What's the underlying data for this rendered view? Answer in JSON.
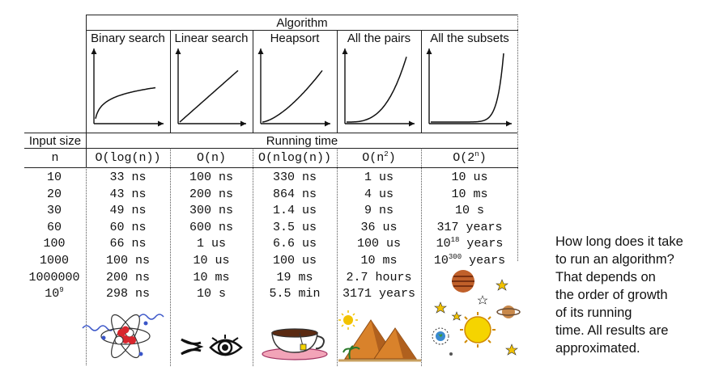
{
  "header": {
    "algorithm_label": "Algorithm",
    "running_time_label": "Running time",
    "input_size_label": "Input size",
    "n_label": "n"
  },
  "algorithms": [
    {
      "name": "Binary search",
      "complexity": "O(log(n))"
    },
    {
      "name": "Linear search",
      "complexity": "O(n)"
    },
    {
      "name": "Heapsort",
      "complexity": "O(nlog(n))"
    },
    {
      "name": "All the pairs",
      "complexity_base": "O(n",
      "complexity_exp": "2",
      "complexity_end": ")"
    },
    {
      "name": "All the subsets",
      "complexity_base": "O(2",
      "complexity_exp": "n",
      "complexity_end": ")"
    }
  ],
  "input_sizes": [
    {
      "value": "10"
    },
    {
      "value": "20"
    },
    {
      "value": "30"
    },
    {
      "value": "60"
    },
    {
      "value": "100"
    },
    {
      "value": "1000"
    },
    {
      "value": "1000000"
    },
    {
      "base": "10",
      "exp": "9"
    }
  ],
  "rows": [
    [
      "33 ns",
      "100 ns",
      "330 ns",
      "1 us",
      "10 us"
    ],
    [
      "43 ns",
      "200 ns",
      "864 ns",
      "4 us",
      "10 ms"
    ],
    [
      "49 ns",
      "300 ns",
      "1.4 us",
      "9 ns",
      "10 s"
    ],
    [
      "60 ns",
      "600 ns",
      "3.5 us",
      "36 us",
      "317 years"
    ],
    [
      "66 ns",
      "1 us",
      "6.6 us",
      "100 us",
      {
        "base": "10",
        "exp": "18",
        "rest": " years"
      }
    ],
    [
      "100 ns",
      "10 us",
      "100 us",
      "10 ms",
      {
        "base": "10",
        "exp": "300",
        "rest": " years"
      }
    ],
    [
      "200 ns",
      "10 ms",
      "19 ms",
      "2.7 hours",
      ""
    ],
    [
      "298 ns",
      "10 s",
      "5.5 min",
      "3171 years",
      ""
    ]
  ],
  "caption": [
    "How long does it take",
    "to run an algorithm?",
    "That depends on",
    "the order of growth",
    "of its running",
    "time. All results are",
    "approximated."
  ],
  "icons": [
    "atom-icon",
    "eyes-blink-icon",
    "tea-cup-icon",
    "pyramids-icon",
    "solar-system-icon"
  ],
  "colors": {
    "line": "#222222",
    "pyramid": "#d9822b",
    "sun": "#f2c200",
    "planet": "#c0602a",
    "atom_red": "#d8262e"
  }
}
